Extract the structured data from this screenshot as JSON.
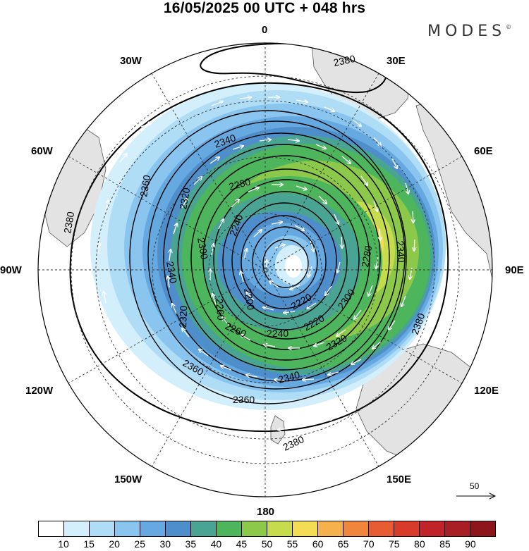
{
  "title": "16/05/2025  00 UTC  + 048 hrs",
  "brand": {
    "name": "MODES",
    "mark": "©"
  },
  "longitude_labels": {
    "lon_0": "0",
    "lon_30e": "30E",
    "lon_60e": "60E",
    "lon_90e": "90E",
    "lon_120e": "120E",
    "lon_150e": "150E",
    "lon_180": "180",
    "lon_150w": "150W",
    "lon_120w": "120W",
    "lon_90w": "90W",
    "lon_60w": "60W",
    "lon_30w": "30W"
  },
  "contour_labels": [
    "2380",
    "2380",
    "2380",
    "2380",
    "2360",
    "2360",
    "2360",
    "2340",
    "2340",
    "2340",
    "2340",
    "2320",
    "2320",
    "2320",
    "2300",
    "2300",
    "2280",
    "2280",
    "2260",
    "2260",
    "2240",
    "2240",
    "2220",
    "2220",
    "2200"
  ],
  "reference_vector": {
    "label": "50"
  },
  "colorbar": {
    "colors": [
      "#ffffff",
      "#d4effc",
      "#b0ddf6",
      "#8ac5ef",
      "#66a8e0",
      "#4e8fcb",
      "#4aa494",
      "#4db55b",
      "#8cc84a",
      "#c6dc4c",
      "#f5dc55",
      "#f4b14c",
      "#f0863c",
      "#e85c34",
      "#d83a2c",
      "#c02428",
      "#a81e24",
      "#8c161b"
    ],
    "tick_labels": [
      "10",
      "15",
      "20",
      "25",
      "30",
      "35",
      "40",
      "45",
      "50",
      "55",
      "60",
      "65",
      "70",
      "75",
      "80",
      "85",
      "90"
    ]
  }
}
